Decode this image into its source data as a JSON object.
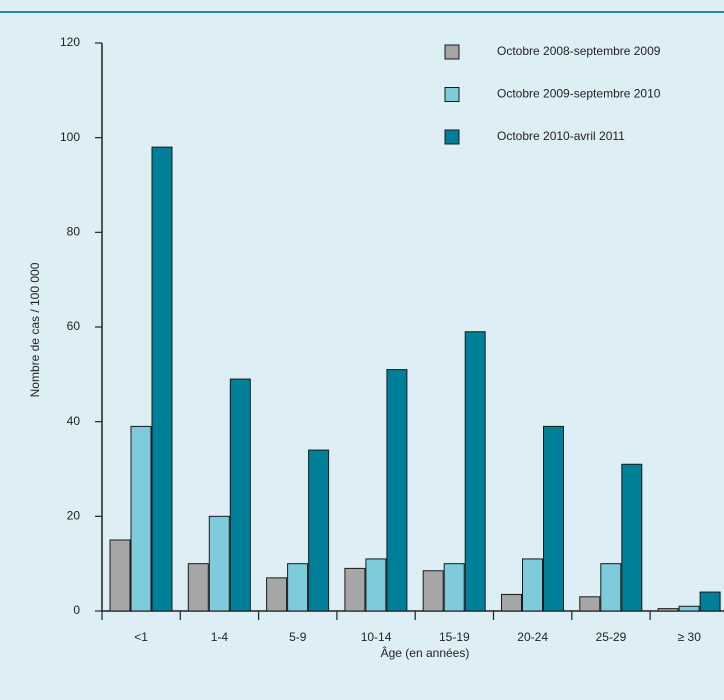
{
  "chart_data": {
    "type": "bar",
    "x_label": "Âge (en années)",
    "y_label": "Nombre de cas / 100 000",
    "categories": [
      "<1",
      "1-4",
      "5-9",
      "10-14",
      "15-19",
      "20-24",
      "25-29",
      "≥ 30"
    ],
    "series": [
      {
        "name": "Octobre 2008-septembre 2009",
        "color": "#a6a6a6",
        "values": [
          15,
          10,
          7,
          9,
          8.5,
          3.5,
          3,
          0.5
        ]
      },
      {
        "name": "Octobre 2009-septembre 2010",
        "color": "#7ecbdc",
        "values": [
          39,
          20,
          10,
          11,
          10,
          11,
          10,
          1
        ]
      },
      {
        "name": "Octobre 2010-avril 2011",
        "color": "#007f99",
        "values": [
          98,
          49,
          34,
          51,
          59,
          39,
          31,
          4
        ]
      }
    ],
    "ylim": [
      0,
      120
    ],
    "yticks": [
      0,
      20,
      40,
      60,
      80,
      100,
      120
    ],
    "legend": "top-right"
  }
}
